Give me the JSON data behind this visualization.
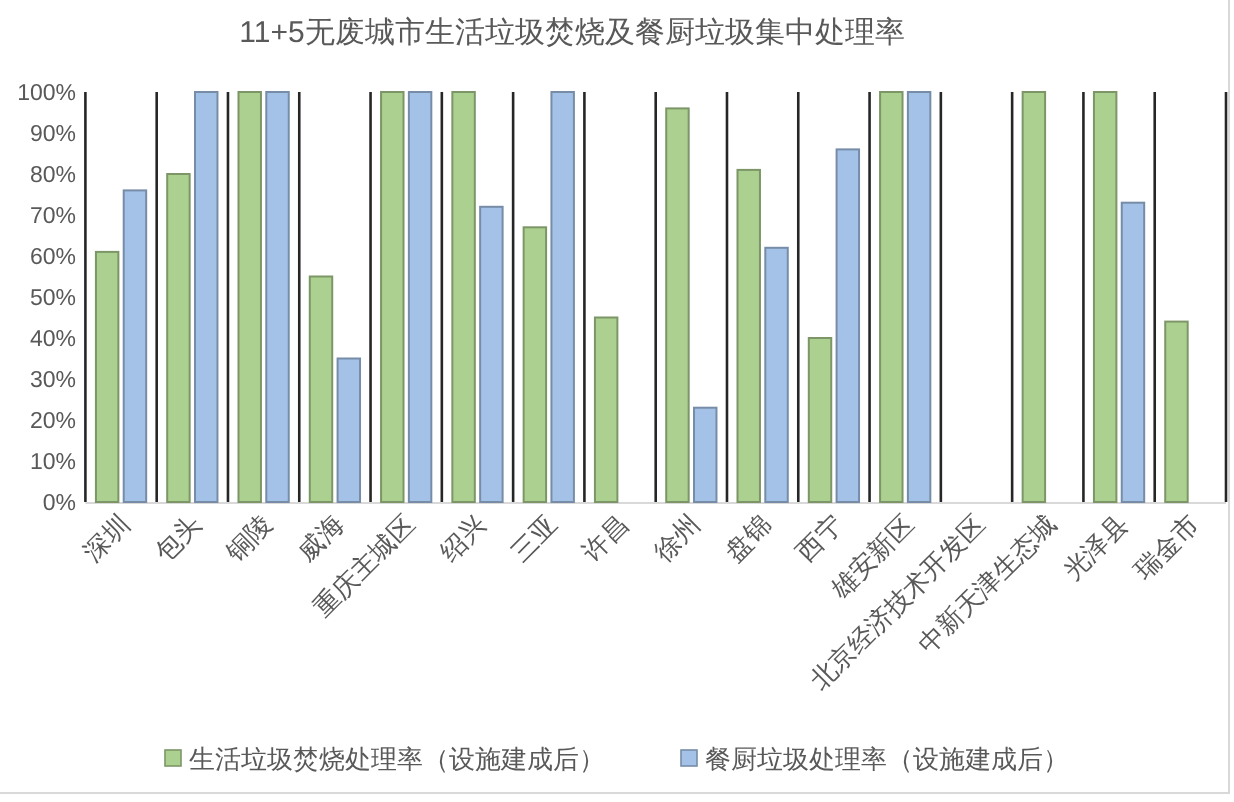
{
  "chart_data": {
    "type": "bar",
    "title": "11+5无废城市生活垃圾焚烧及餐厨垃圾集中处理率",
    "categories": [
      "深圳",
      "包头",
      "铜陵",
      "威海",
      "重庆主城区",
      "绍兴",
      "三亚",
      "许昌",
      "徐州",
      "盘锦",
      "西宁",
      "雄安新区",
      "北京经济技术开发区",
      "中新天津生态城",
      "光泽县",
      "瑞金市"
    ],
    "series": [
      {
        "name": "生活垃圾焚烧处理率（设施建成后）",
        "color": "#acd08f",
        "values": [
          61,
          80,
          100,
          55,
          100,
          100,
          67,
          45,
          96,
          81,
          40,
          100,
          null,
          100,
          100,
          44
        ]
      },
      {
        "name": "餐厨垃圾处理率（设施建成后）",
        "color": "#a4c2e8",
        "values": [
          76,
          100,
          100,
          35,
          100,
          72,
          100,
          null,
          23,
          62,
          86,
          100,
          null,
          null,
          73,
          null
        ]
      }
    ],
    "ylim": [
      0,
      100
    ],
    "yticks": [
      {
        "value": 0,
        "label": "0%"
      },
      {
        "value": 10,
        "label": "10%"
      },
      {
        "value": 20,
        "label": "20%"
      },
      {
        "value": 30,
        "label": "30%"
      },
      {
        "value": 40,
        "label": "40%"
      },
      {
        "value": 50,
        "label": "50%"
      },
      {
        "value": 60,
        "label": "60%"
      },
      {
        "value": 70,
        "label": "70%"
      },
      {
        "value": 80,
        "label": "80%"
      },
      {
        "value": 90,
        "label": "90%"
      },
      {
        "value": 100,
        "label": "100%"
      }
    ],
    "grid": "x",
    "legend": "bottom"
  }
}
